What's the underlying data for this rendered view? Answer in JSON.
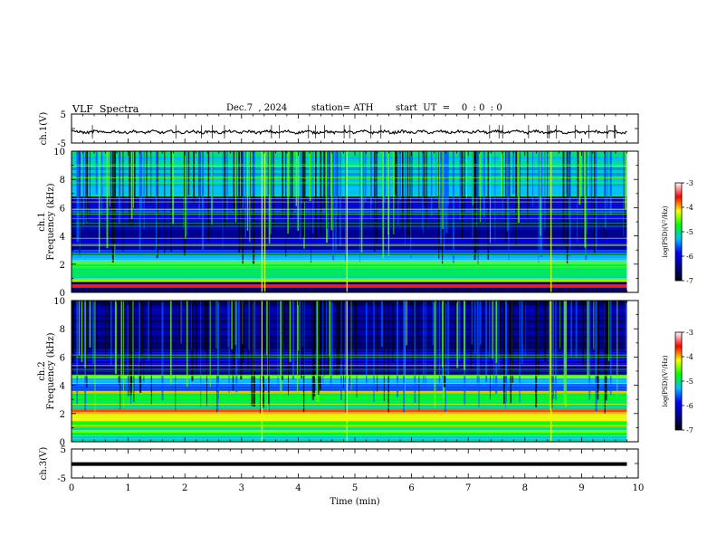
{
  "header": {
    "title": "VLF  Spectra",
    "date": "Dec.7  , 2024",
    "station": "station= ATH",
    "start_ut": "start  UT  =    0  : 0  : 0"
  },
  "colorbar": {
    "label": "log(PSD)(V²/Hz)",
    "ticks": [
      "-3",
      "-4",
      "-5",
      "-6",
      "-7"
    ],
    "colors": [
      "#000000",
      "#00008b",
      "#0000ff",
      "#00bfff",
      "#00ff00",
      "#ffff00",
      "#ff0000",
      "#ffffff"
    ]
  },
  "chart_data": [
    {
      "type": "line",
      "name": "ch1-waveform",
      "ylabel": "ch.1(V)",
      "ylim": [
        -5,
        5
      ],
      "yticks": [
        "5",
        "-5"
      ],
      "xlim": [
        0,
        10
      ],
      "y_baseline": -1.2,
      "description_of_trace": "noisy signal around -1 V"
    },
    {
      "type": "heatmap",
      "name": "ch1-spectrogram",
      "ylabel_top": "ch.1",
      "ylabel": "Frequency  (kHz)",
      "ylim": [
        0,
        10
      ],
      "yticks": [
        "0",
        "2",
        "4",
        "6",
        "8",
        "10"
      ],
      "xlim": [
        0,
        10
      ],
      "data_end_min": 9.8,
      "zlim": [
        -7,
        -3
      ],
      "bands_khz": [
        {
          "from": 0.0,
          "to": 0.35,
          "level": -6.6
        },
        {
          "from": 0.35,
          "to": 0.55,
          "level": -3.6
        },
        {
          "from": 0.55,
          "to": 0.75,
          "level": -6.6
        },
        {
          "from": 0.75,
          "to": 1.0,
          "level": -4.3
        },
        {
          "from": 1.0,
          "to": 1.7,
          "level": -5.1
        },
        {
          "from": 1.7,
          "to": 2.2,
          "level": -4.7
        },
        {
          "from": 2.2,
          "to": 3.0,
          "level": -5.5
        },
        {
          "from": 3.0,
          "to": 5.0,
          "level": -6.3
        },
        {
          "from": 5.0,
          "to": 6.8,
          "level": -6.0
        },
        {
          "from": 6.8,
          "to": 10.0,
          "level": -5.2
        }
      ],
      "events_min": [
        3.35,
        3.4,
        4.85,
        8.45
      ]
    },
    {
      "type": "heatmap",
      "name": "ch2-spectrogram",
      "ylabel_top": "ch.2",
      "ylabel": "Frequency  (kHz)",
      "ylim": [
        0,
        10
      ],
      "yticks": [
        "0",
        "2",
        "4",
        "6",
        "8",
        "10"
      ],
      "xlim": [
        0,
        10
      ],
      "data_end_min": 9.8,
      "zlim": [
        -7,
        -3
      ],
      "bands_khz": [
        {
          "from": 0.0,
          "to": 0.4,
          "level": -5.0
        },
        {
          "from": 0.4,
          "to": 1.4,
          "level": -4.7
        },
        {
          "from": 1.4,
          "to": 2.0,
          "level": -4.3
        },
        {
          "from": 2.0,
          "to": 2.3,
          "level": -3.7
        },
        {
          "from": 2.3,
          "to": 3.4,
          "level": -5.0
        },
        {
          "from": 3.4,
          "to": 3.6,
          "level": -4.2
        },
        {
          "from": 3.6,
          "to": 4.5,
          "level": -5.4
        },
        {
          "from": 4.5,
          "to": 4.7,
          "level": -4.3
        },
        {
          "from": 4.7,
          "to": 6.5,
          "level": -6.2
        },
        {
          "from": 6.5,
          "to": 10.0,
          "level": -6.4
        }
      ],
      "events_min": [
        3.35,
        4.85,
        8.45
      ]
    },
    {
      "type": "line",
      "name": "ch3-waveform",
      "ylabel": "ch.3(V)",
      "ylim": [
        -5,
        5
      ],
      "yticks": [
        "5",
        "-5"
      ],
      "xlim": [
        0,
        10
      ],
      "y_baseline": -0.2,
      "xlabel": "Time  (min)",
      "xticks": [
        "0",
        "1",
        "2",
        "3",
        "4",
        "5",
        "6",
        "7",
        "8",
        "9",
        "10"
      ]
    }
  ]
}
